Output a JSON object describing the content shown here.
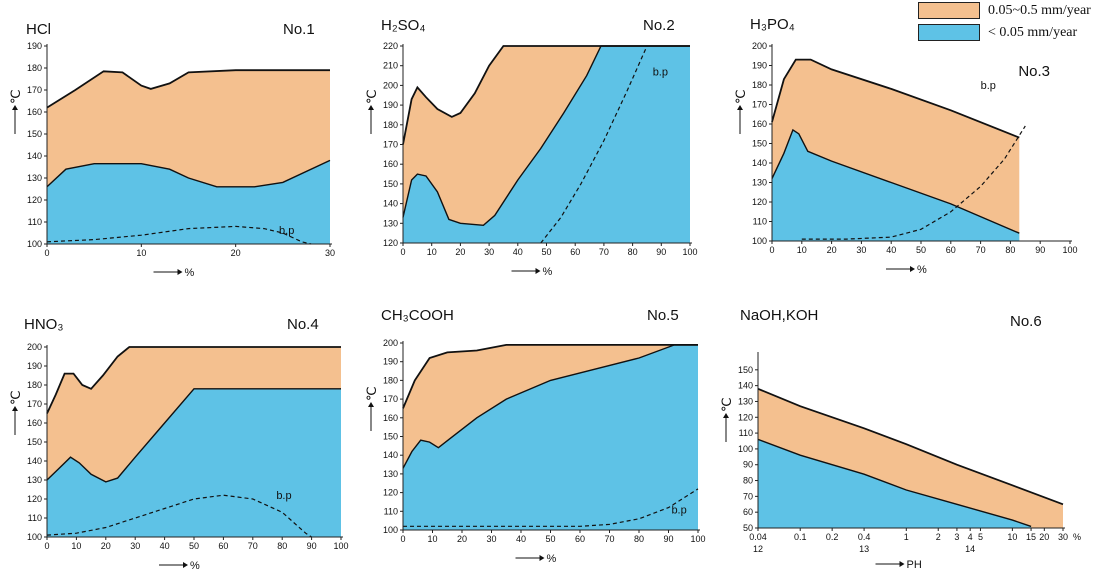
{
  "legend": [
    {
      "label": "0.05~0.5 mm/year",
      "color": "#f4c08f"
    },
    {
      "label": "< 0.05 mm/year",
      "color": "#5ec2e6"
    }
  ],
  "colors": {
    "orange": "#f4c08f",
    "blue": "#5ec2e6",
    "line": "#111111"
  },
  "chart_data": [
    {
      "type": "area",
      "title": "HCl",
      "panel_no": "No.1",
      "ylabel": "℃",
      "xlabel": "%",
      "xlim": [
        0,
        30
      ],
      "ylim": [
        100,
        190
      ],
      "x_ticks": [
        "0",
        "10",
        "20",
        "30"
      ],
      "y_ticks": [
        "100",
        "110",
        "120",
        "130",
        "140",
        "150",
        "160",
        "170",
        "180",
        "190"
      ],
      "series": [
        {
          "name": "0.05~0.5 mm/year",
          "boundary": [
            [
              0,
              162
            ],
            [
              3,
              170
            ],
            [
              6,
              178.5
            ],
            [
              8,
              178
            ],
            [
              10,
              172
            ],
            [
              11,
              170.5
            ],
            [
              13,
              173
            ],
            [
              15,
              178
            ],
            [
              20,
              179
            ],
            [
              30,
              179
            ]
          ]
        },
        {
          "name": "< 0.05 mm/year",
          "boundary": [
            [
              0,
              126
            ],
            [
              2,
              134
            ],
            [
              5,
              136.5
            ],
            [
              10,
              136.5
            ],
            [
              13,
              134
            ],
            [
              15,
              130
            ],
            [
              18,
              126
            ],
            [
              22,
              126
            ],
            [
              25,
              128
            ],
            [
              30,
              138
            ]
          ]
        }
      ],
      "bp": {
        "label": "b.p",
        "points": [
          [
            0,
            101
          ],
          [
            5,
            102
          ],
          [
            10,
            104
          ],
          [
            15,
            107
          ],
          [
            20,
            108
          ],
          [
            23,
            107
          ],
          [
            25,
            105
          ],
          [
            27,
            101
          ],
          [
            28,
            100
          ]
        ]
      }
    },
    {
      "type": "area",
      "title": "H₂SO₄",
      "panel_no": "No.2",
      "ylabel": "℃",
      "xlabel": "%",
      "xlim": [
        0,
        100
      ],
      "ylim": [
        120,
        220
      ],
      "x_ticks": [
        "0",
        "10",
        "20",
        "30",
        "40",
        "50",
        "60",
        "70",
        "80",
        "90",
        "100"
      ],
      "y_ticks": [
        "120",
        "130",
        "140",
        "150",
        "160",
        "170",
        "180",
        "190",
        "200",
        "210",
        "220"
      ],
      "series": [
        {
          "name": "0.05~0.5 mm/year",
          "boundary": [
            [
              0,
              170
            ],
            [
              3,
              193
            ],
            [
              5,
              199
            ],
            [
              8,
              194
            ],
            [
              12,
              188
            ],
            [
              17,
              184
            ],
            [
              20,
              186
            ],
            [
              25,
              196
            ],
            [
              30,
              210
            ],
            [
              35,
              220
            ],
            [
              100,
              220
            ]
          ]
        },
        {
          "name": "< 0.05 mm/year",
          "boundary": [
            [
              0,
              133
            ],
            [
              3,
              152
            ],
            [
              5,
              155
            ],
            [
              8,
              154
            ],
            [
              12,
              146
            ],
            [
              16,
              132
            ],
            [
              20,
              130
            ],
            [
              28,
              129
            ],
            [
              32,
              134
            ],
            [
              40,
              152
            ],
            [
              48,
              168
            ],
            [
              56,
              186
            ],
            [
              64,
              205
            ],
            [
              69,
              220
            ],
            [
              100,
              220
            ]
          ]
        }
      ],
      "bp": {
        "label": "b.p",
        "points": [
          [
            48,
            120
          ],
          [
            55,
            133
          ],
          [
            62,
            150
          ],
          [
            70,
            172
          ],
          [
            78,
            197
          ],
          [
            85,
            220
          ]
        ]
      }
    },
    {
      "type": "area",
      "title": "H₃PO₄",
      "panel_no": "No.3",
      "ylabel": "℃",
      "xlabel": "%",
      "xlim": [
        0,
        100
      ],
      "ylim": [
        100,
        200
      ],
      "x_ticks": [
        "0",
        "10",
        "20",
        "30",
        "40",
        "50",
        "60",
        "70",
        "80",
        "90",
        "100"
      ],
      "y_ticks": [
        "100",
        "110",
        "120",
        "130",
        "140",
        "150",
        "160",
        "170",
        "180",
        "190",
        "200"
      ],
      "series": [
        {
          "name": "0.05~0.5 mm/year",
          "boundary": [
            [
              0,
              161
            ],
            [
              4,
              183
            ],
            [
              8,
              193
            ],
            [
              13,
              193
            ],
            [
              20,
              188
            ],
            [
              40,
              178
            ],
            [
              60,
              167
            ],
            [
              83,
              153
            ]
          ]
        },
        {
          "name": "< 0.05 mm/year",
          "boundary": [
            [
              0,
              132
            ],
            [
              4,
              145
            ],
            [
              7,
              157
            ],
            [
              9,
              155
            ],
            [
              12,
              146
            ],
            [
              20,
              141
            ],
            [
              40,
              130
            ],
            [
              60,
              119
            ],
            [
              83,
              104
            ]
          ]
        }
      ],
      "bp": {
        "label": "b.p",
        "points": [
          [
            10,
            101
          ],
          [
            25,
            101
          ],
          [
            40,
            102
          ],
          [
            50,
            106
          ],
          [
            60,
            115
          ],
          [
            70,
            128
          ],
          [
            78,
            142
          ],
          [
            85,
            159
          ]
        ]
      }
    },
    {
      "type": "area",
      "title": "HNO₃",
      "panel_no": "No.4",
      "ylabel": "℃",
      "xlabel": "%",
      "xlim": [
        0,
        100
      ],
      "ylim": [
        100,
        200
      ],
      "x_ticks": [
        "0",
        "10",
        "20",
        "30",
        "40",
        "50",
        "60",
        "70",
        "80",
        "90",
        "100"
      ],
      "y_ticks": [
        "100",
        "110",
        "120",
        "130",
        "140",
        "150",
        "160",
        "170",
        "180",
        "190",
        "200"
      ],
      "series": [
        {
          "name": "0.05~0.5 mm/year",
          "boundary": [
            [
              0,
              165
            ],
            [
              3,
              175
            ],
            [
              6,
              186
            ],
            [
              9,
              186
            ],
            [
              12,
              180
            ],
            [
              15,
              178
            ],
            [
              19,
              185
            ],
            [
              24,
              195
            ],
            [
              28,
              200
            ],
            [
              100,
              200
            ]
          ]
        },
        {
          "name": "< 0.05 mm/year",
          "boundary": [
            [
              0,
              130
            ],
            [
              4,
              136
            ],
            [
              8,
              142
            ],
            [
              11,
              139
            ],
            [
              15,
              133
            ],
            [
              20,
              129
            ],
            [
              24,
              131
            ],
            [
              30,
              142
            ],
            [
              40,
              160
            ],
            [
              50,
              178
            ],
            [
              100,
              178
            ]
          ]
        }
      ],
      "bp": {
        "label": "b.p",
        "points": [
          [
            0,
            101
          ],
          [
            10,
            102
          ],
          [
            20,
            105
          ],
          [
            30,
            110
          ],
          [
            40,
            115
          ],
          [
            50,
            120
          ],
          [
            60,
            122
          ],
          [
            70,
            120
          ],
          [
            80,
            113
          ],
          [
            88,
            102
          ],
          [
            90,
            100
          ]
        ]
      }
    },
    {
      "type": "area",
      "title": "CH₃COOH",
      "panel_no": "No.5",
      "ylabel": "℃",
      "xlabel": "%",
      "xlim": [
        0,
        100
      ],
      "ylim": [
        100,
        200
      ],
      "x_ticks": [
        "0",
        "10",
        "20",
        "30",
        "40",
        "50",
        "60",
        "70",
        "80",
        "90",
        "100"
      ],
      "y_ticks": [
        "100",
        "110",
        "120",
        "130",
        "140",
        "150",
        "160",
        "170",
        "180",
        "190",
        "200"
      ],
      "series": [
        {
          "name": "0.05~0.5 mm/year",
          "boundary": [
            [
              0,
              165
            ],
            [
              4,
              180
            ],
            [
              9,
              192
            ],
            [
              15,
              195
            ],
            [
              25,
              196
            ],
            [
              35,
              199
            ],
            [
              100,
              199
            ]
          ]
        },
        {
          "name": "< 0.05 mm/year",
          "boundary": [
            [
              0,
              133
            ],
            [
              3,
              142
            ],
            [
              6,
              148
            ],
            [
              9,
              147
            ],
            [
              12,
              144
            ],
            [
              16,
              149
            ],
            [
              25,
              160
            ],
            [
              35,
              170
            ],
            [
              50,
              180
            ],
            [
              65,
              186
            ],
            [
              80,
              192
            ],
            [
              92,
              199
            ],
            [
              100,
              199
            ]
          ]
        }
      ],
      "bp": {
        "label": "b.p",
        "points": [
          [
            0,
            102
          ],
          [
            30,
            102
          ],
          [
            60,
            102
          ],
          [
            70,
            103
          ],
          [
            80,
            106
          ],
          [
            90,
            112
          ],
          [
            100,
            122
          ]
        ]
      }
    },
    {
      "type": "area",
      "title": "NaOH,KOH",
      "panel_no": "No.6",
      "ylabel": "℃",
      "xlabel": "PH",
      "xlim": [
        0.04,
        30
      ],
      "ylim": [
        50,
        160
      ],
      "x_ticks": [
        "0.04",
        "0.1",
        "0.2",
        "0.4",
        "1",
        "2",
        "3",
        "4",
        "5",
        "10",
        "15",
        "20",
        "30"
      ],
      "x_ticks2": [
        "12",
        "13",
        "14"
      ],
      "x_unit": "%",
      "y_ticks": [
        "50",
        "60",
        "70",
        "80",
        "90",
        "100",
        "110",
        "120",
        "130",
        "140",
        "150"
      ],
      "series": [
        {
          "name": "0.05~0.5 mm/year",
          "boundary": [
            [
              0.04,
              138
            ],
            [
              0.1,
              127
            ],
            [
              0.4,
              113
            ],
            [
              1,
              103
            ],
            [
              3,
              90
            ],
            [
              10,
              77
            ],
            [
              30,
              65
            ]
          ]
        },
        {
          "name": "< 0.05 mm/year",
          "boundary": [
            [
              0.04,
              106
            ],
            [
              0.1,
              96
            ],
            [
              0.4,
              84
            ],
            [
              1,
              74
            ],
            [
              3,
              65
            ],
            [
              10,
              55
            ],
            [
              15,
              51
            ]
          ]
        }
      ]
    }
  ]
}
